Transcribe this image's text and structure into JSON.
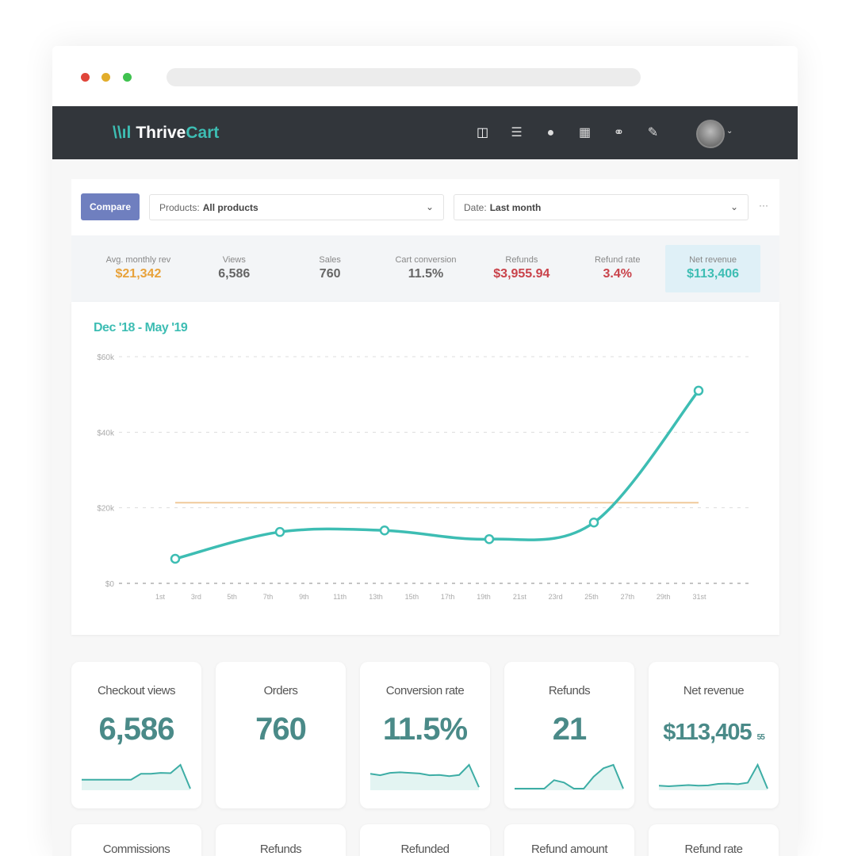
{
  "browser": {
    "controls": [
      "close",
      "minimize",
      "maximize"
    ]
  },
  "nav": {
    "brand_a": "Thrive",
    "brand_b": "Cart",
    "icons": [
      "dashboard-icon",
      "list-icon",
      "user-icon",
      "calendar-icon",
      "handshake-icon",
      "report-icon"
    ]
  },
  "filters": {
    "compare_label": "Compare",
    "products_label": "Products:",
    "products_value": "All products",
    "date_label": "Date:",
    "date_value": "Last month",
    "more": "···"
  },
  "stats": [
    {
      "label": "Avg. monthly rev",
      "value": "$21,342",
      "color": "#e8a23a"
    },
    {
      "label": "Views",
      "value": "6,586",
      "color": "#666666"
    },
    {
      "label": "Sales",
      "value": "760",
      "color": "#666666"
    },
    {
      "label": "Cart conversion",
      "value": "11.5%",
      "color": "#666666"
    },
    {
      "label": "Refunds",
      "value": "$3,955.94",
      "color": "#c9424a"
    },
    {
      "label": "Refund rate",
      "value": "3.4%",
      "color": "#c9424a"
    },
    {
      "label": "Net revenue",
      "value": "$113,406",
      "color": "#3dbdb3"
    }
  ],
  "chart_data": {
    "type": "line",
    "title": "Dec '18 - May '19",
    "x_ticks": [
      "1st",
      "3rd",
      "5th",
      "7th",
      "9th",
      "11th",
      "13th",
      "15th",
      "17th",
      "19th",
      "21st",
      "23rd",
      "25th",
      "27th",
      "29th",
      "31st"
    ],
    "y_ticks": [
      "$0",
      "$20k",
      "$40k",
      "$60k"
    ],
    "ylim": [
      0,
      60000
    ],
    "grid": true,
    "series": [
      {
        "values": [
          6500,
          13600,
          14000,
          11700,
          16100,
          51000
        ],
        "color": "#3dbdb3"
      }
    ],
    "reference_line": {
      "value": 21342,
      "color": "#f0c99a"
    }
  },
  "cards": [
    {
      "title": "Checkout views",
      "value": "6,586",
      "spark": [
        3,
        3,
        3,
        3,
        3,
        3,
        5,
        5,
        5.3,
        5.2,
        8,
        0
      ]
    },
    {
      "title": "Orders",
      "value": "760",
      "spark": []
    },
    {
      "title": "Conversion rate",
      "value": "11.5%",
      "spark": [
        5,
        4.5,
        5.3,
        5.5,
        5.3,
        5.1,
        4.5,
        4.6,
        4.2,
        4.6,
        8,
        0.5
      ]
    },
    {
      "title": "Refunds",
      "value": "21",
      "spark": [
        0,
        0,
        0,
        0,
        2.5,
        1.8,
        0,
        0,
        3.5,
        6,
        7,
        0
      ]
    },
    {
      "title": "Net revenue",
      "value": "$113,405",
      "cents": "55",
      "spark": [
        1,
        0.8,
        1,
        1.2,
        1,
        1.1,
        1.6,
        1.7,
        1.5,
        2,
        8,
        0
      ]
    }
  ],
  "cards2": [
    {
      "title": "Commissions"
    },
    {
      "title": "Refunds"
    },
    {
      "title": "Refunded"
    },
    {
      "title": "Refund amount"
    },
    {
      "title": "Refund rate"
    }
  ]
}
